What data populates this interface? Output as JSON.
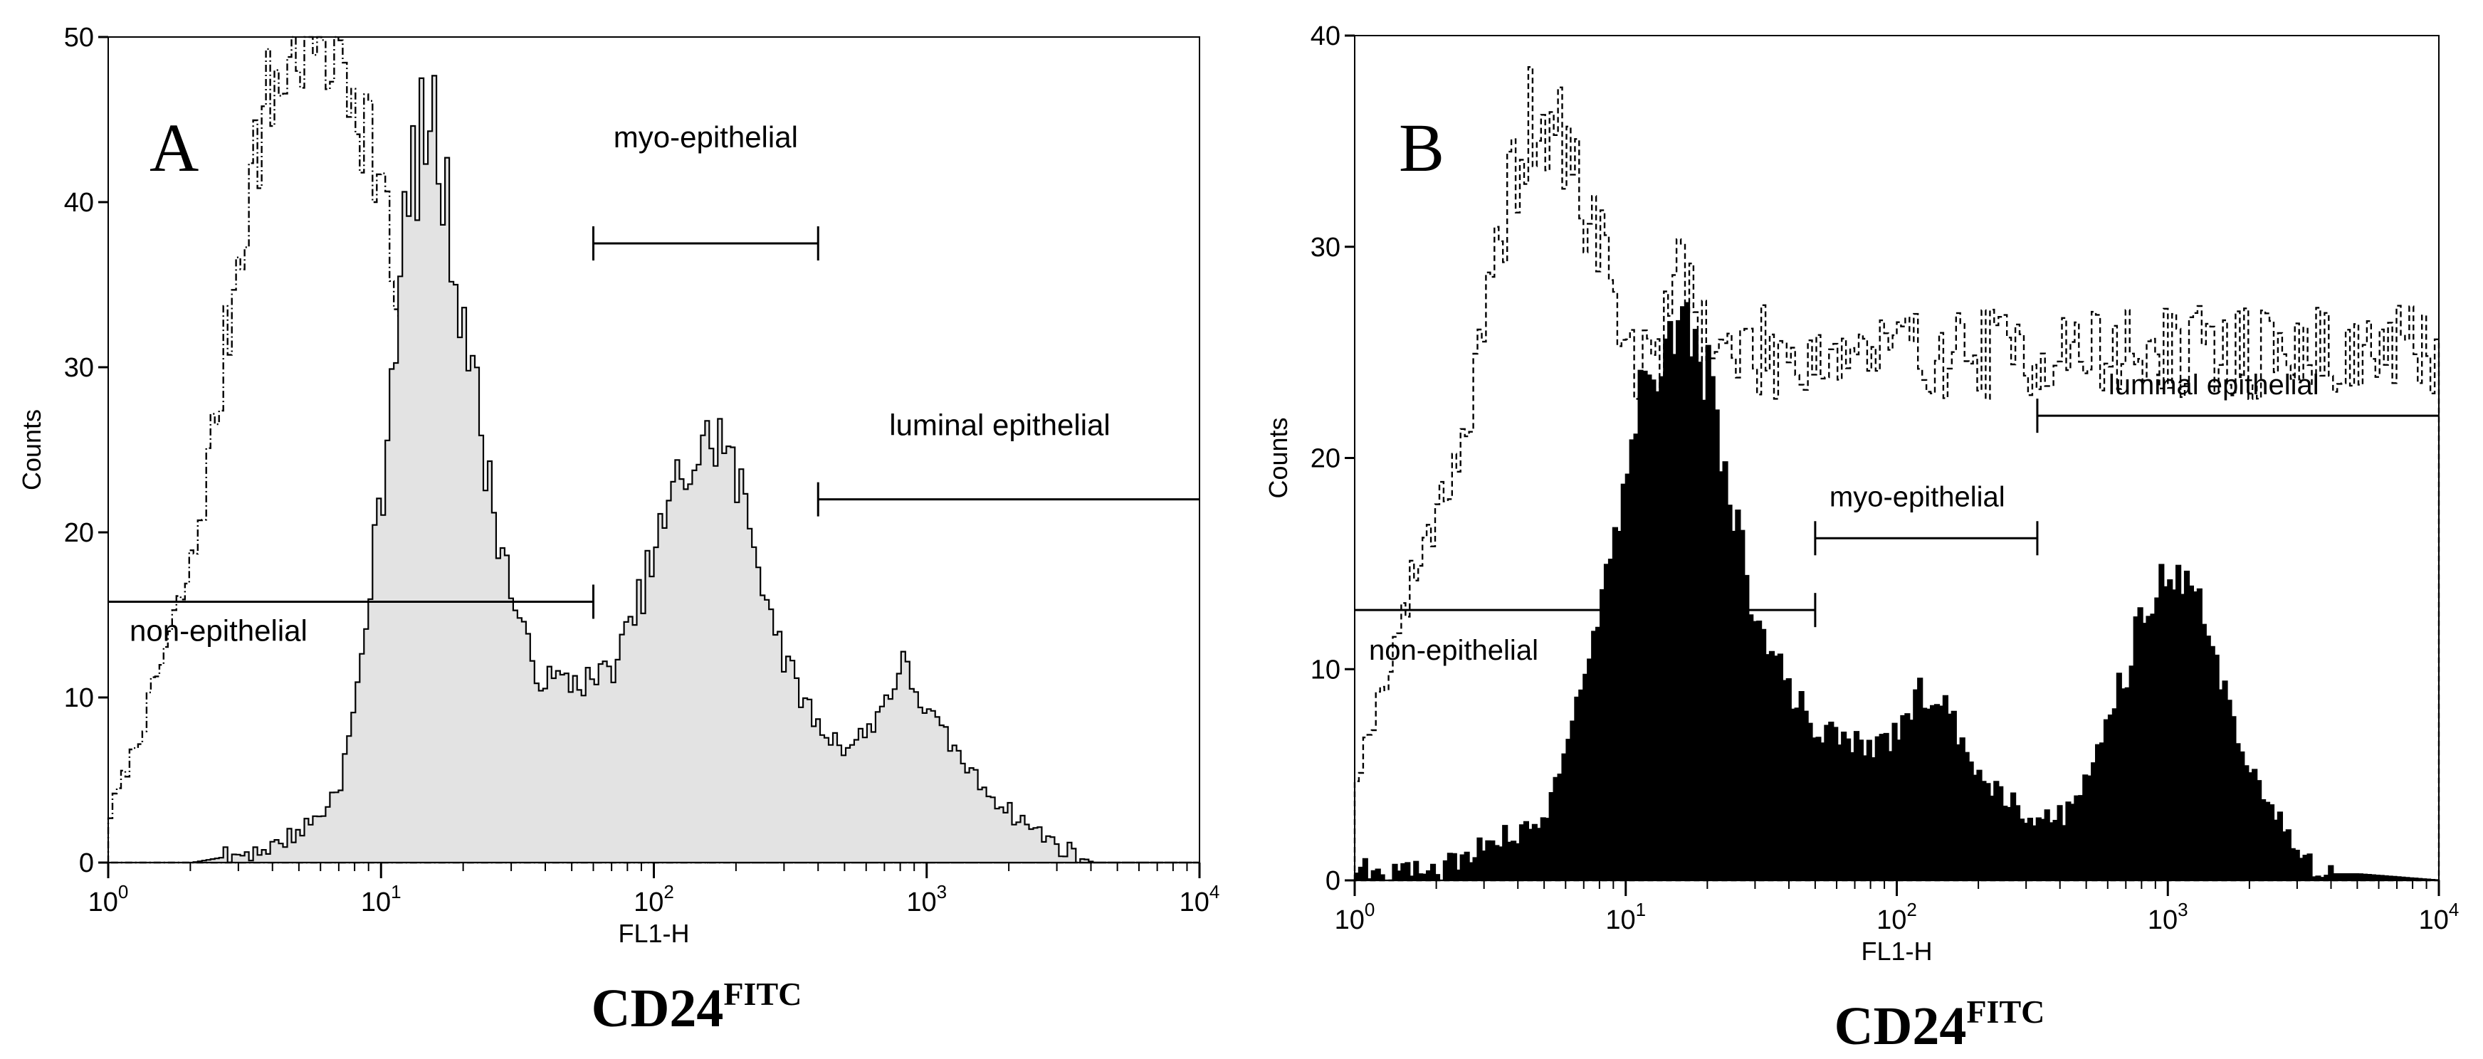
{
  "chart_data": [
    {
      "panel_label": "A",
      "type": "area",
      "xscale": "log",
      "xlim": [
        1,
        10000
      ],
      "ylim": [
        0,
        50
      ],
      "xticks": [
        {
          "value": 1,
          "base": "10",
          "exp": "0"
        },
        {
          "value": 10,
          "base": "10",
          "exp": "1"
        },
        {
          "value": 100,
          "base": "10",
          "exp": "2"
        },
        {
          "value": 1000,
          "base": "10",
          "exp": "3"
        },
        {
          "value": 10000,
          "base": "10",
          "exp": "4"
        }
      ],
      "yticks": [
        0,
        10,
        20,
        30,
        40,
        50
      ],
      "xlabel": "FL1-H",
      "ylabel": "Counts",
      "xtitle_main": "CD24",
      "xtitle_sup": "FITC",
      "fill_color": "#e3e3e3",
      "series": [
        {
          "style": "dash-dot outline (control)",
          "x": [
            1,
            1.3,
            1.6,
            2,
            2.5,
            3,
            3.5,
            4,
            5,
            6,
            7,
            8,
            9,
            10,
            12,
            15,
            18,
            20,
            25,
            30,
            35,
            40,
            50,
            60,
            80,
            100,
            150,
            200
          ],
          "y": [
            3,
            8,
            13,
            18,
            28,
            38,
            44,
            47,
            50,
            50,
            49,
            47,
            44,
            40,
            30,
            24,
            20,
            17,
            14,
            10,
            8,
            6,
            4,
            3,
            2,
            1,
            0.5,
            0
          ]
        },
        {
          "style": "solid filled histogram",
          "x": [
            1,
            2,
            3,
            4,
            5,
            6,
            7,
            8,
            9,
            10,
            11,
            12,
            13,
            14,
            15,
            16,
            17,
            18,
            20,
            22,
            25,
            30,
            35,
            40,
            50,
            60,
            70,
            80,
            100,
            120,
            150,
            170,
            200,
            250,
            300,
            400,
            500,
            600,
            700,
            800,
            1000,
            1500,
            2000,
            3000,
            4000
          ],
          "y": [
            0,
            0,
            0.5,
            1,
            2,
            3,
            5,
            10,
            17,
            23,
            32,
            38,
            42,
            44,
            45,
            43,
            40,
            37,
            33,
            28,
            22,
            16,
            12,
            11,
            11,
            11,
            12,
            14,
            19,
            23,
            25,
            26,
            23,
            17,
            12,
            8,
            7,
            8,
            10,
            12,
            9,
            5,
            3,
            1,
            0
          ]
        }
      ],
      "gates": [
        {
          "label": "non-epithelial",
          "x_start": 1,
          "x_end": 60,
          "y": 15.8
        },
        {
          "label": "myo-epithelial",
          "x_start": 60,
          "x_end": 400,
          "y": 37.5
        },
        {
          "label": "luminal epithelial",
          "x_start": 400,
          "x_end": 10000,
          "y": 22
        }
      ]
    },
    {
      "panel_label": "B",
      "type": "area",
      "xscale": "log",
      "xlim": [
        1,
        10000
      ],
      "ylim": [
        0,
        40
      ],
      "xticks": [
        {
          "value": 1,
          "base": "10",
          "exp": "0"
        },
        {
          "value": 10,
          "base": "10",
          "exp": "1"
        },
        {
          "value": 100,
          "base": "10",
          "exp": "2"
        },
        {
          "value": 1000,
          "base": "10",
          "exp": "3"
        },
        {
          "value": 10000,
          "base": "10",
          "exp": "4"
        }
      ],
      "yticks": [
        0,
        10,
        20,
        30,
        40
      ],
      "xlabel": "FL1-H",
      "ylabel": "Counts",
      "xtitle_main": "CD24",
      "xtitle_sup": "FITC",
      "fill_color": "#000000",
      "series": [
        {
          "style": "dashed outline (control)",
          "x": [
            1,
            1.3,
            1.6,
            2,
            2.5,
            3,
            3.5,
            4,
            5,
            6,
            7,
            8,
            9,
            10,
            12,
            14,
            16,
            20
          ],
          "y": [
            5,
            10,
            14,
            18,
            21,
            26,
            31,
            35,
            36,
            34,
            32,
            30,
            28,
            25,
            24,
            26,
            30,
            25
          ]
        },
        {
          "style": "solid filled histogram",
          "x": [
            1,
            1.5,
            2,
            2.5,
            3,
            4,
            5,
            6,
            7,
            8,
            9,
            10,
            11,
            12,
            13,
            15,
            17,
            19,
            21,
            25,
            30,
            40,
            50,
            60,
            80,
            100,
            120,
            150,
            200,
            250,
            300,
            400,
            500,
            600,
            700,
            800,
            1000,
            1200,
            1500,
            2000,
            2500,
            3000,
            4000,
            5000,
            10000
          ],
          "y": [
            0.5,
            0.5,
            0.5,
            1,
            2,
            2,
            3,
            7,
            10,
            13,
            16,
            19,
            24,
            26,
            24,
            25,
            26,
            25,
            22,
            17,
            12,
            9,
            7,
            7,
            6,
            7,
            9,
            8,
            5,
            4,
            3,
            3,
            5,
            8,
            10,
            13,
            15,
            14,
            10,
            5,
            3,
            1,
            0.3,
            0.3,
            0
          ]
        }
      ],
      "gates": [
        {
          "label": "non-epithelial",
          "x_start": 1,
          "x_end": 50,
          "y": 12.8
        },
        {
          "label": "myo-epithelial",
          "x_start": 50,
          "x_end": 330,
          "y": 16.2
        },
        {
          "label": "luminal epithelial",
          "x_start": 330,
          "x_end": 10000,
          "y": 22
        }
      ]
    }
  ]
}
